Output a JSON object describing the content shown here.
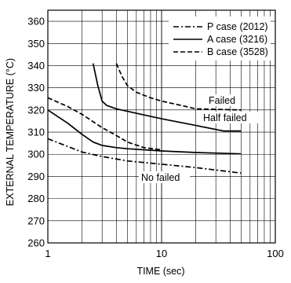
{
  "chart_data": {
    "type": "line",
    "title": "",
    "xlabel": "TIME  (sec)",
    "ylabel": "EXTERNAL TEMPERATURE (°C)",
    "xscale": "log",
    "xlim": [
      1,
      100
    ],
    "ylim": [
      260,
      365
    ],
    "x_ticks": [
      1,
      10,
      100
    ],
    "x_tick_labels": [
      "1",
      "10",
      "100"
    ],
    "y_ticks": [
      260,
      270,
      280,
      290,
      300,
      310,
      320,
      330,
      340,
      350,
      360
    ],
    "y_tick_labels": [
      "260",
      "270",
      "280",
      "290",
      "300",
      "310",
      "320",
      "330",
      "340",
      "350",
      "360"
    ],
    "grid": true,
    "legend_position": "top-right",
    "series": [
      {
        "name": "P case (2012)",
        "style": "dashdot",
        "group": "no-failed",
        "points": [
          [
            1,
            307
          ],
          [
            2,
            301
          ],
          [
            3,
            299
          ],
          [
            5,
            297
          ],
          [
            10,
            295.5
          ],
          [
            20,
            294
          ],
          [
            50,
            291.5
          ]
        ]
      },
      {
        "name": "A case (3216)",
        "style": "solid",
        "group": "no-failed",
        "points": [
          [
            1,
            320
          ],
          [
            1.5,
            314
          ],
          [
            2,
            309
          ],
          [
            2.5,
            305.5
          ],
          [
            3,
            304
          ],
          [
            4,
            303
          ],
          [
            5,
            302.5
          ],
          [
            10,
            301.5
          ],
          [
            20,
            300.8
          ],
          [
            50,
            300.2
          ]
        ]
      },
      {
        "name": "B case (3528)",
        "style": "dashed",
        "group": "no-failed",
        "points": [
          [
            1,
            325.5
          ],
          [
            1.5,
            321.5
          ],
          [
            2,
            318
          ],
          [
            3,
            312
          ],
          [
            4,
            308.5
          ],
          [
            5,
            305.5
          ],
          [
            7,
            303
          ],
          [
            10,
            302
          ]
        ]
      },
      {
        "name": "A case (3216)",
        "style": "solid",
        "group": "half-failed",
        "points": [
          [
            2.5,
            341
          ],
          [
            2.75,
            331
          ],
          [
            3,
            324
          ],
          [
            3.3,
            322
          ],
          [
            4,
            320.5
          ],
          [
            6,
            318.5
          ],
          [
            10,
            316
          ],
          [
            20,
            313
          ],
          [
            35,
            310.5
          ],
          [
            50,
            310.5
          ]
        ]
      },
      {
        "name": "B case (3528)",
        "style": "dashed",
        "group": "failed",
        "points": [
          [
            4,
            341
          ],
          [
            4.5,
            335
          ],
          [
            5,
            331
          ],
          [
            6,
            328
          ],
          [
            8,
            325.5
          ],
          [
            10,
            324
          ],
          [
            15,
            322
          ],
          [
            20,
            320.5
          ],
          [
            50,
            320
          ]
        ]
      }
    ],
    "annotations": [
      "Failed",
      "Half failed",
      "No failed"
    ]
  }
}
